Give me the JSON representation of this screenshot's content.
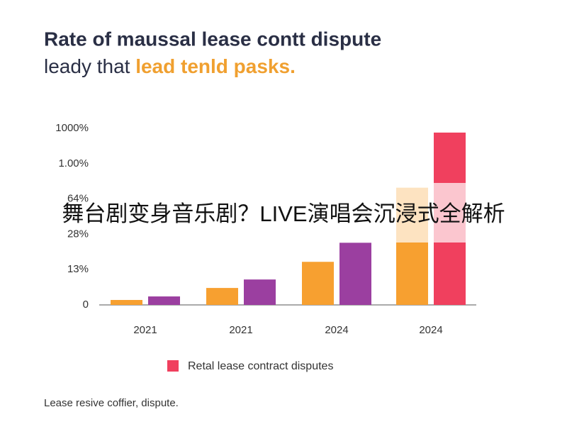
{
  "chart_data": {
    "type": "bar",
    "title": "Rate of maussal lease contt dispute",
    "subtitle": [
      "leady that ",
      "lead tenld pasks."
    ],
    "categories": [
      "2021",
      "2021",
      "2024",
      "2024"
    ],
    "series": [
      {
        "color": "#f7a030",
        "values": [
          0.14,
          0.48,
          1.22,
          3.32
        ]
      },
      {
        "color": "#9b3fa0",
        "values": [
          0.24,
          0.72,
          1.76,
          null
        ]
      },
      {
        "name": "Retal lease contract disputes",
        "color": "#f0405e",
        "values": [
          null,
          null,
          null,
          4.88
        ]
      }
    ],
    "ylim": [
      0,
      5
    ],
    "yticks": [
      {
        "value": 0,
        "label": "0"
      },
      {
        "value": 1,
        "label": "13%"
      },
      {
        "value": 2,
        "label": "28%"
      },
      {
        "value": 3,
        "label": "64%"
      },
      {
        "value": 4,
        "label": "1.00%"
      },
      {
        "value": 5,
        "label": "1000%"
      }
    ],
    "overlay": "舞台剧变身音乐剧？LIVE演唱会沉浸式全解析",
    "footnote": "Lease resive coffier, dispute."
  }
}
